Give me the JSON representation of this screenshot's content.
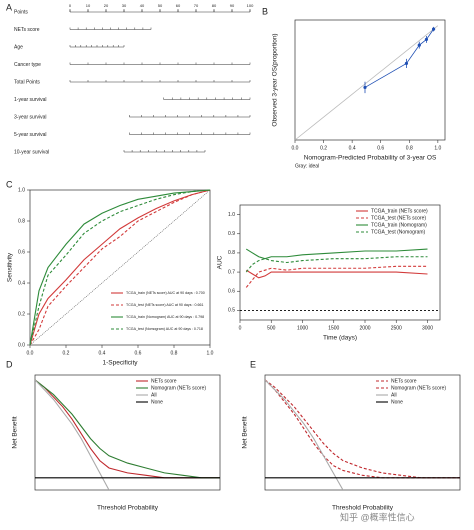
{
  "chart_data": [
    {
      "type": "nomogram",
      "panel": "A",
      "xlim": [
        0,
        100
      ],
      "xticks": [
        0,
        10,
        20,
        30,
        40,
        50,
        60,
        70,
        80,
        90,
        100
      ],
      "rows": [
        {
          "name": "Points",
          "span": [
            0,
            100
          ]
        },
        {
          "name": "NETs score",
          "span": [
            0,
            45
          ]
        },
        {
          "name": "Age",
          "span": [
            0,
            30
          ]
        },
        {
          "name": "Cancer type",
          "span": [
            0,
            100
          ]
        },
        {
          "name": "Total Points",
          "span": [
            0,
            100
          ]
        },
        {
          "name": "1-year survival",
          "span": [
            52,
            100
          ]
        },
        {
          "name": "3-year survival",
          "span": [
            33,
            100
          ]
        },
        {
          "name": "5-year survival",
          "span": [
            33,
            100
          ]
        },
        {
          "name": "10-year survival",
          "span": [
            30,
            75
          ]
        }
      ]
    },
    {
      "type": "calibration",
      "panel": "B",
      "xlabel": "Nomogram-Predicted Probability of 3-year OS",
      "ylabel": "Observed 3-year OS(proportion)",
      "note": "Gray: ideal",
      "xlim": [
        0,
        1.05
      ],
      "ylim": [
        0,
        1.05
      ],
      "xticks": [
        {
          "value": 0,
          "label": "0.0"
        },
        0.2,
        0.4,
        0.6,
        0.8,
        {
          "value": 1,
          "label": "1.0"
        }
      ],
      "x": [
        0.49,
        0.78,
        0.87,
        0.92,
        0.97
      ],
      "values": [
        0.46,
        0.67,
        0.83,
        0.88,
        0.97
      ],
      "errors": [
        0.05,
        0.04,
        0.03,
        0.03,
        0.02
      ],
      "color": "#1f4fb4"
    },
    {
      "type": "roc",
      "panel": "C",
      "xlabel": "1-Specificity",
      "ylabel": "Sensitivity",
      "xlim": [
        0,
        1
      ],
      "ylim": [
        0,
        1
      ],
      "legend": "bottom-right",
      "xticks": [
        {
          "value": 0,
          "label": "0.0"
        },
        0.2,
        0.4,
        0.6,
        0.8,
        {
          "value": 1,
          "label": "1.0"
        }
      ],
      "yticks": [
        {
          "value": 0,
          "label": "0.0"
        },
        0.2,
        0.4,
        0.6,
        0.8,
        {
          "value": 1,
          "label": "1.0"
        }
      ],
      "series": [
        {
          "name": "TCGA_train (NETs score) AUC at 90 days : 0.700",
          "color": "#d23a3a",
          "dashed": false,
          "x": [
            0,
            0.05,
            0.1,
            0.2,
            0.3,
            0.4,
            0.5,
            0.6,
            0.7,
            0.8,
            0.9,
            1
          ],
          "values": [
            0,
            0.2,
            0.3,
            0.42,
            0.55,
            0.65,
            0.75,
            0.82,
            0.88,
            0.93,
            0.97,
            1
          ]
        },
        {
          "name": "TCGA_test (NETs score) AUC at 90 days : 0.661",
          "color": "#d23a3a",
          "dashed": true,
          "x": [
            0,
            0.05,
            0.1,
            0.2,
            0.3,
            0.4,
            0.5,
            0.6,
            0.7,
            0.8,
            0.9,
            1
          ],
          "values": [
            0,
            0.1,
            0.25,
            0.38,
            0.5,
            0.62,
            0.7,
            0.8,
            0.86,
            0.92,
            0.97,
            1
          ]
        },
        {
          "name": "TCGA_train (Nomogram) AUC at 90 days : 0.798",
          "color": "#2e8b3a",
          "dashed": false,
          "x": [
            0,
            0.05,
            0.1,
            0.2,
            0.3,
            0.4,
            0.5,
            0.6,
            0.7,
            0.8,
            0.9,
            1
          ],
          "values": [
            0,
            0.35,
            0.5,
            0.65,
            0.78,
            0.85,
            0.9,
            0.94,
            0.96,
            0.98,
            0.99,
            1
          ]
        },
        {
          "name": "TCGA_test (Nomogram) AUC at 90 days : 0.718",
          "color": "#2e8b3a",
          "dashed": true,
          "x": [
            0,
            0.05,
            0.1,
            0.2,
            0.3,
            0.4,
            0.5,
            0.6,
            0.7,
            0.8,
            0.9,
            1
          ],
          "values": [
            0,
            0.25,
            0.45,
            0.58,
            0.72,
            0.8,
            0.86,
            0.9,
            0.94,
            0.97,
            0.99,
            1
          ]
        }
      ]
    },
    {
      "type": "line",
      "xlabel": "Time (days)",
      "ylabel": "AUC",
      "legend": "top-right",
      "reference": 0.5,
      "xlim": [
        0,
        3200
      ],
      "ylim": [
        0.45,
        1.05
      ],
      "xticks": [
        0,
        500,
        1000,
        1500,
        2000,
        2500,
        3000
      ],
      "yticks": [
        0.5,
        0.6,
        0.7,
        0.8,
        0.9,
        {
          "value": 1,
          "label": "1.0"
        }
      ],
      "x": [
        100,
        200,
        300,
        400,
        500,
        750,
        1000,
        1500,
        2000,
        2500,
        3000
      ],
      "series": [
        {
          "name": "TCGA_train (NETs score)",
          "color": "#d23a3a",
          "dashed": false,
          "values": [
            0.71,
            0.69,
            0.67,
            0.68,
            0.7,
            0.7,
            0.7,
            0.7,
            0.7,
            0.7,
            0.69
          ]
        },
        {
          "name": "TCGA_test (NETs score)",
          "color": "#d23a3a",
          "dashed": true,
          "values": [
            0.62,
            0.66,
            0.7,
            0.71,
            0.72,
            0.71,
            0.72,
            0.72,
            0.72,
            0.73,
            0.73
          ]
        },
        {
          "name": "TCGA_train (Nomogram)",
          "color": "#2e8b3a",
          "dashed": false,
          "values": [
            0.82,
            0.8,
            0.78,
            0.77,
            0.78,
            0.78,
            0.79,
            0.8,
            0.81,
            0.81,
            0.82
          ]
        },
        {
          "name": "TCGA_test (Nomogram)",
          "color": "#2e8b3a",
          "dashed": true,
          "values": [
            0.7,
            0.74,
            0.76,
            0.77,
            0.76,
            0.75,
            0.76,
            0.77,
            0.77,
            0.78,
            0.78
          ]
        }
      ]
    },
    {
      "type": "line",
      "panel": "D",
      "xlabel": "Threshold Probability",
      "ylabel": "Net Benefit",
      "legend": "top-right",
      "xlim": [
        0,
        1
      ],
      "ylim": [
        -0.05,
        0.42
      ],
      "x": [
        0,
        0.05,
        0.1,
        0.15,
        0.2,
        0.25,
        0.3,
        0.35,
        0.4,
        0.5,
        0.6,
        0.7,
        0.8,
        0.9,
        1
      ],
      "series": [
        {
          "name": "NETs score",
          "color": "#c0282d",
          "dashed": false,
          "values": [
            0.4,
            0.37,
            0.33,
            0.29,
            0.24,
            0.18,
            0.12,
            0.07,
            0.04,
            0.02,
            0.01,
            0,
            0,
            0,
            0
          ]
        },
        {
          "name": "Nomogram (NETs score)",
          "color": "#2e7d32",
          "dashed": false,
          "values": [
            0.4,
            0.37,
            0.34,
            0.3,
            0.26,
            0.21,
            0.16,
            0.12,
            0.09,
            0.06,
            0.04,
            0.02,
            0.01,
            0,
            0
          ]
        },
        {
          "name": "All",
          "color": "#aaaaaa",
          "dashed": false,
          "values": [
            0.4,
            0.36,
            0.32,
            0.27,
            0.22,
            0.16,
            0.09,
            0.02,
            -0.05,
            null,
            null,
            null,
            null,
            null,
            null
          ]
        },
        {
          "name": "None",
          "color": "#000000",
          "dashed": false,
          "values": [
            0,
            0,
            0,
            0,
            0,
            0,
            0,
            0,
            0,
            0,
            0,
            0,
            0,
            0,
            0
          ]
        }
      ]
    },
    {
      "type": "line",
      "panel": "E",
      "xlabel": "Threshold Probability",
      "ylabel": "Net Benefit",
      "legend": "top-right",
      "xlim": [
        0,
        1
      ],
      "ylim": [
        -0.05,
        0.42
      ],
      "x": [
        0,
        0.05,
        0.1,
        0.15,
        0.2,
        0.25,
        0.3,
        0.35,
        0.4,
        0.5,
        0.6,
        0.7,
        0.8,
        0.9,
        1
      ],
      "series": [
        {
          "name": "NETs score",
          "color": "#c0282d",
          "dashed": true,
          "values": [
            0.4,
            0.36,
            0.31,
            0.26,
            0.2,
            0.14,
            0.09,
            0.05,
            0.03,
            0.01,
            0,
            0,
            0,
            0,
            0
          ]
        },
        {
          "name": "Nomogram (NETs score)",
          "color": "#c0282d",
          "dashed": true,
          "values": [
            0.4,
            0.37,
            0.33,
            0.29,
            0.24,
            0.19,
            0.14,
            0.1,
            0.07,
            0.04,
            0.02,
            0.01,
            0,
            0,
            0
          ]
        },
        {
          "name": "All",
          "color": "#aaaaaa",
          "dashed": false,
          "values": [
            0.4,
            0.36,
            0.32,
            0.27,
            0.22,
            0.16,
            0.09,
            0.02,
            -0.05,
            null,
            null,
            null,
            null,
            null,
            null
          ]
        },
        {
          "name": "None",
          "color": "#000000",
          "dashed": false,
          "values": [
            0,
            0,
            0,
            0,
            0,
            0,
            0,
            0,
            0,
            0,
            0,
            0,
            0,
            0,
            0
          ]
        }
      ]
    }
  ],
  "watermark": "知乎 @概率性信心"
}
